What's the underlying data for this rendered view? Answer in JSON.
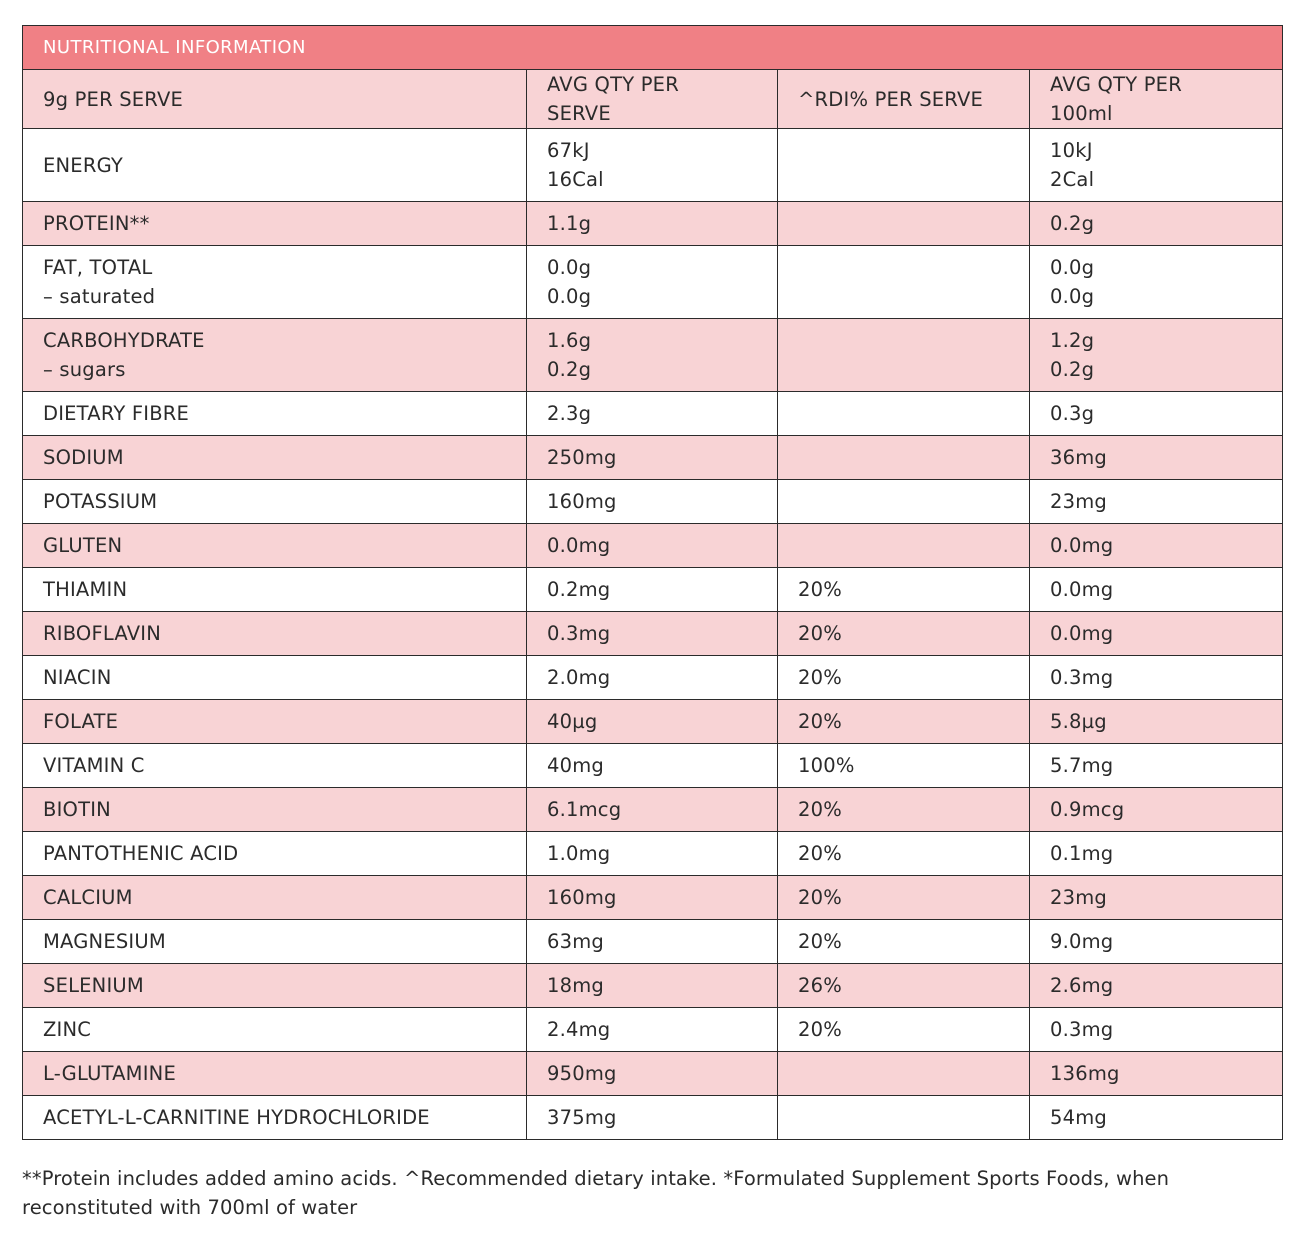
{
  "table": {
    "title": "NUTRITIONAL INFORMATION",
    "headers": [
      "9g PER SERVE",
      "AVG QTY PER SERVE",
      "^RDI% PER SERVE",
      "AVG QTY PER 100ml"
    ],
    "rows": [
      {
        "name": [
          "ENERGY"
        ],
        "per_serve": [
          "67kJ",
          "16Cal"
        ],
        "rdi": [],
        "per_100ml": [
          "10kJ",
          "2Cal"
        ]
      },
      {
        "name": [
          "PROTEIN**"
        ],
        "per_serve": [
          "1.1g"
        ],
        "rdi": [],
        "per_100ml": [
          "0.2g"
        ]
      },
      {
        "name": [
          "FAT, TOTAL",
          "– saturated"
        ],
        "per_serve": [
          "0.0g",
          "0.0g"
        ],
        "rdi": [],
        "per_100ml": [
          "0.0g",
          "0.0g"
        ]
      },
      {
        "name": [
          "CARBOHYDRATE",
          "– sugars"
        ],
        "per_serve": [
          "1.6g",
          "0.2g"
        ],
        "rdi": [],
        "per_100ml": [
          "1.2g",
          "0.2g"
        ]
      },
      {
        "name": [
          "DIETARY FIBRE"
        ],
        "per_serve": [
          "2.3g"
        ],
        "rdi": [],
        "per_100ml": [
          "0.3g"
        ]
      },
      {
        "name": [
          "SODIUM"
        ],
        "per_serve": [
          "250mg"
        ],
        "rdi": [],
        "per_100ml": [
          "36mg"
        ]
      },
      {
        "name": [
          "POTASSIUM"
        ],
        "per_serve": [
          "160mg"
        ],
        "rdi": [],
        "per_100ml": [
          "23mg"
        ]
      },
      {
        "name": [
          "GLUTEN"
        ],
        "per_serve": [
          "0.0mg"
        ],
        "rdi": [],
        "per_100ml": [
          "0.0mg"
        ]
      },
      {
        "name": [
          "THIAMIN"
        ],
        "per_serve": [
          "0.2mg"
        ],
        "rdi": [
          "20%"
        ],
        "per_100ml": [
          "0.0mg"
        ]
      },
      {
        "name": [
          "RIBOFLAVIN"
        ],
        "per_serve": [
          "0.3mg"
        ],
        "rdi": [
          "20%"
        ],
        "per_100ml": [
          "0.0mg"
        ]
      },
      {
        "name": [
          "NIACIN"
        ],
        "per_serve": [
          "2.0mg"
        ],
        "rdi": [
          "20%"
        ],
        "per_100ml": [
          "0.3mg"
        ]
      },
      {
        "name": [
          "FOLATE"
        ],
        "per_serve": [
          "40µg"
        ],
        "rdi": [
          "20%"
        ],
        "per_100ml": [
          "5.8µg"
        ]
      },
      {
        "name": [
          "VITAMIN C"
        ],
        "per_serve": [
          "40mg"
        ],
        "rdi": [
          "100%"
        ],
        "per_100ml": [
          "5.7mg"
        ]
      },
      {
        "name": [
          "BIOTIN"
        ],
        "per_serve": [
          "6.1mcg"
        ],
        "rdi": [
          "20%"
        ],
        "per_100ml": [
          "0.9mcg"
        ]
      },
      {
        "name": [
          "PANTOTHENIC ACID"
        ],
        "per_serve": [
          "1.0mg"
        ],
        "rdi": [
          "20%"
        ],
        "per_100ml": [
          "0.1mg"
        ]
      },
      {
        "name": [
          "CALCIUM"
        ],
        "per_serve": [
          "160mg"
        ],
        "rdi": [
          "20%"
        ],
        "per_100ml": [
          "23mg"
        ]
      },
      {
        "name": [
          "MAGNESIUM"
        ],
        "per_serve": [
          "63mg"
        ],
        "rdi": [
          "20%"
        ],
        "per_100ml": [
          "9.0mg"
        ]
      },
      {
        "name": [
          "SELENIUM"
        ],
        "per_serve": [
          "18mg"
        ],
        "rdi": [
          "26%"
        ],
        "per_100ml": [
          "2.6mg"
        ]
      },
      {
        "name": [
          "ZINC"
        ],
        "per_serve": [
          "2.4mg"
        ],
        "rdi": [
          "20%"
        ],
        "per_100ml": [
          "0.3mg"
        ]
      },
      {
        "name": [
          "L-GLUTAMINE"
        ],
        "per_serve": [
          "950mg"
        ],
        "rdi": [],
        "per_100ml": [
          "136mg"
        ]
      },
      {
        "name": [
          "ACETYL-L-CARNITINE HYDROCHLORIDE"
        ],
        "per_serve": [
          "375mg"
        ],
        "rdi": [],
        "per_100ml": [
          "54mg"
        ]
      }
    ]
  },
  "footnote": {
    "line1": "**Protein includes added amino acids. ^Recommended dietary intake. *Formulated Supplement Sports Foods, when",
    "line2": "reconstituted with 700ml of water"
  },
  "colors": {
    "title_bg": "#f08085",
    "pink_row": "#f8d3d5",
    "border": "#2b2b2b",
    "text": "#2b2b2b"
  }
}
